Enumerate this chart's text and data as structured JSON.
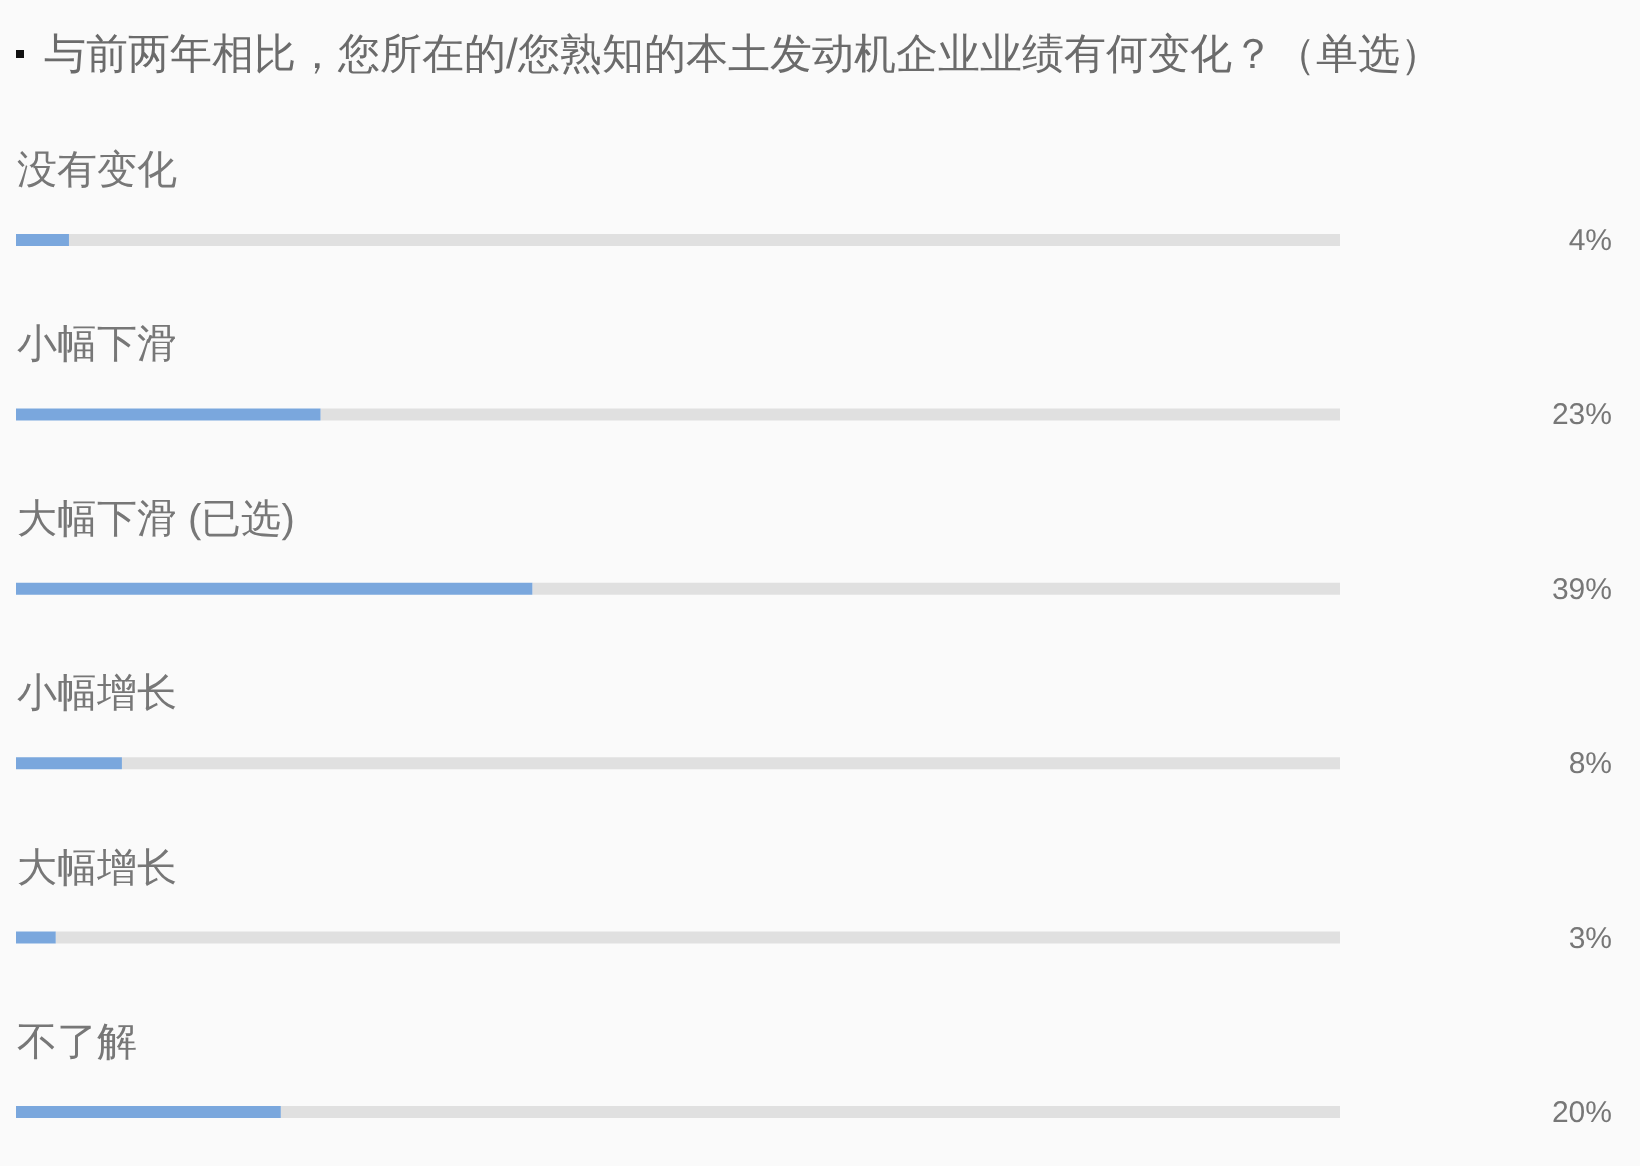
{
  "chart_data": {
    "type": "bar",
    "orientation": "horizontal",
    "title": "与前两年相比，您所在的/您熟知的本土发动机企业业绩有何变化？（单选）",
    "categories": [
      "没有变化",
      "小幅下滑",
      "大幅下滑 (已选)",
      "小幅增长",
      "大幅增长",
      "不了解"
    ],
    "values": [
      4,
      23,
      39,
      8,
      3,
      20
    ],
    "value_labels": [
      "4%",
      "23%",
      "39%",
      "8%",
      "3%",
      "20%"
    ],
    "color": "#7aa7dd",
    "xlim": [
      0,
      100
    ],
    "tick_labels": "y"
  }
}
